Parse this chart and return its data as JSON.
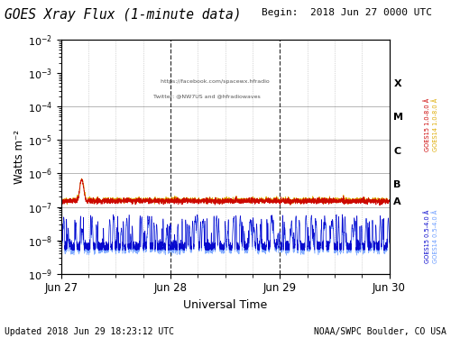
{
  "title": "GOES Xray Flux (1-minute data)",
  "begin_label": "Begin:  2018 Jun 27 0000 UTC",
  "updated_label": "Updated 2018 Jun 29 18:23:12 UTC",
  "credit_label": "NOAA/SWPC Boulder, CO USA",
  "xlabel": "Universal Time",
  "ylabel": "Watts m⁻²",
  "xtick_labels": [
    "Jun 27",
    "Jun 28",
    "Jun 29",
    "Jun 30"
  ],
  "ymin": 1e-09,
  "ymax": 0.01,
  "xmin": 0,
  "xmax": 4320,
  "flare_class_labels": [
    "X",
    "M",
    "C",
    "B",
    "A"
  ],
  "goes15_long_color": "#cc0000",
  "goes14_long_color": "#ddaa00",
  "goes15_short_color": "#0000cc",
  "goes14_short_color": "#6699ff",
  "annotation_line1": "    https://facebook.com/spacewx.hfradio",
  "annotation_line2": "Twitter: @NW7US and @hfradiowaves",
  "background_color": "#ffffff",
  "goes15_legend": "GOES15 1.0-8.0 Å",
  "goes14_legend": "GOES14 1.0-8.0 Å",
  "goes15_short_legend": "GOES15 0.5-4.0 Å",
  "goes14_short_legend": "GOES14 0.5-4.0 Å"
}
